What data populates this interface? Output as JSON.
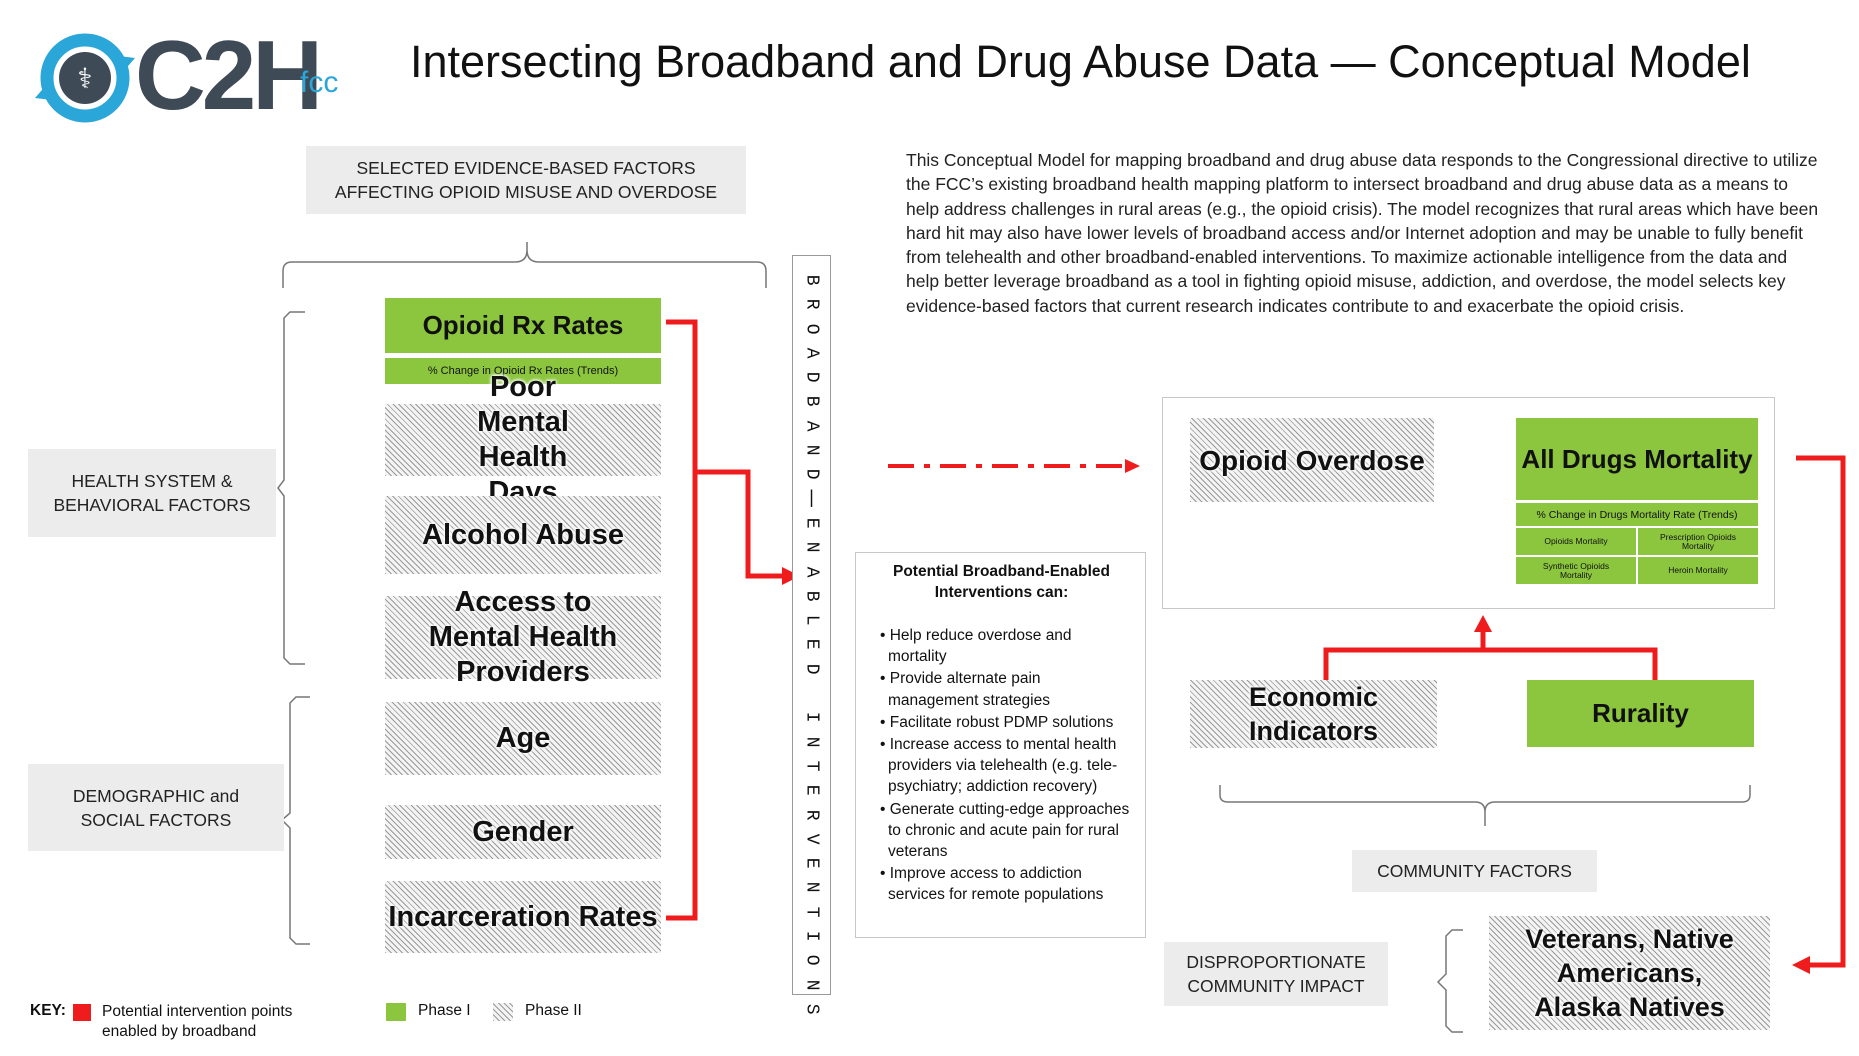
{
  "logo": {
    "text": "C2H",
    "sub": "fcc"
  },
  "header": {
    "title": "Intersecting Broadband and Drug Abuse Data — Conceptual Model"
  },
  "intro": "This Conceptual Model for mapping broadband and drug abuse data responds to the Congressional directive to utilize the FCC’s existing broadband health mapping platform to intersect broadband and drug abuse data as a means to help address challenges in rural areas (e.g., the opioid crisis).  The model recognizes that rural areas which have been hard hit may also have lower levels of broadband access and/or Internet adoption and may be unable to fully benefit from telehealth and other broadband-enabled interventions.  To maximize actionable intelligence from the data and help better leverage broadband as a tool in fighting opioid misuse, addiction, and overdose, the model selects key evidence-based factors that current research indicates contribute to and exacerbate the opioid crisis.",
  "left": {
    "selected_header": "SELECTED EVIDENCE-BASED FACTORS AFFECTING OPIOID MISUSE AND OVERDOSE",
    "health_group": "HEALTH SYSTEM & BEHAVIORAL FACTORS",
    "demo_group": "DEMOGRAPHIC and SOCIAL FACTORS",
    "opioid_rx": "Opioid Rx Rates",
    "opioid_rx_sub": "% Change in Opioid Rx Rates (Trends)",
    "factors": [
      "Poor Mental Health Days",
      "Alcohol Abuse",
      "Access to Mental Health Providers",
      "Age",
      "Gender",
      "Incarceration Rates"
    ]
  },
  "vertical_label": "BROADBAND-ENABLED INTERVENTIONS",
  "interventions": {
    "title": "Potential Broadband-Enabled Interventions can:",
    "items": [
      "Help reduce overdose and mortality",
      "Provide alternate pain management strategies",
      "Facilitate robust PDMP solutions",
      "Increase access to mental health providers via telehealth (e.g. tele-psychiatry; addiction recovery)",
      "Generate cutting-edge approaches to chronic and acute pain for rural veterans",
      "Improve access to addiction services for remote populations"
    ]
  },
  "right": {
    "opioid_overdose": "Opioid Overdose",
    "all_drugs": "All Drugs Mortality",
    "all_drugs_sub": "% Change in Drugs Mortality Rate (Trends)",
    "sub_cells": [
      "Opioids Mortality",
      "Prescription Opioids Mortality",
      "Synthetic Opioids Mortality",
      "Heroin Mortality"
    ],
    "economic": "Economic Indicators",
    "rurality": "Rurality",
    "community": "COMMUNITY FACTORS",
    "dispro": "DISPROPORTIONATE COMMUNITY IMPACT",
    "veterans": "Veterans, Native Americans, Alaska Natives"
  },
  "key": {
    "label": "KEY:",
    "red_text": "Potential intervention points enabled by broadband",
    "phase1": "Phase I",
    "phase2": "Phase II"
  },
  "colors": {
    "green": "#8cc63f",
    "red": "#ee1c1c",
    "gray_box": "#ececec",
    "logo_blue": "#2aa6d9",
    "logo_dark": "#3f4a57"
  }
}
